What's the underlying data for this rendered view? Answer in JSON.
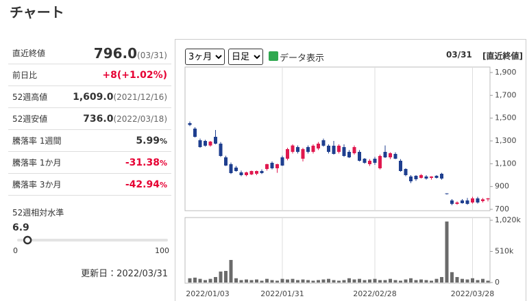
{
  "header": {
    "title": "チャート"
  },
  "summary": {
    "rows": [
      {
        "label": "直近終値",
        "value": "796.0",
        "note": "(03/31)"
      },
      {
        "label": "前日比",
        "value": "+8(+1.02%)",
        "color": "#e60033"
      },
      {
        "label": "52週高値",
        "value": "1,609.0",
        "note": "(2021/12/16)"
      },
      {
        "label": "52週安値",
        "value": "736.0",
        "note": "(2022/03/18)"
      },
      {
        "label": "騰落率 1週間",
        "value": "5.99",
        "unit": "%"
      },
      {
        "label": "騰落率 1か月",
        "value": "-31.38",
        "unit": "%",
        "color": "#e60033"
      },
      {
        "label": "騰落率 3か月",
        "value": "-42.94",
        "unit": "%",
        "color": "#e60033"
      }
    ],
    "level": {
      "label": "52週相対水準",
      "value": 6.9,
      "min": 0,
      "max": 100
    },
    "updated": "更新日：2022/03/31"
  },
  "controls": {
    "period": "3ヶ月",
    "interval": "日足",
    "show_data": "データ表示",
    "date": "03/31",
    "basis": "[直近終値]"
  },
  "chart_data": {
    "type": "candlestick",
    "categories": [
      "2022/01/03",
      null,
      null,
      null,
      null,
      null,
      null,
      null,
      null,
      null,
      null,
      null,
      null,
      null,
      null,
      null,
      null,
      null,
      "2022/01/31",
      null,
      null,
      null,
      null,
      null,
      null,
      null,
      null,
      null,
      null,
      null,
      null,
      null,
      null,
      null,
      null,
      null,
      "2022/02/28",
      null,
      null,
      null,
      null,
      null,
      null,
      null,
      null,
      null,
      null,
      null,
      null,
      null,
      null,
      null,
      null,
      null,
      null,
      "2022/03/28",
      null,
      null,
      null
    ],
    "open": [
      1456,
      1408,
      1306,
      1300,
      1260,
      1336,
      1276,
      1156,
      1096,
      1066,
      1024,
      1000,
      1006,
      1012,
      1036,
      1054,
      1108,
      1060,
      1156,
      1144,
      1204,
      1246,
      1144,
      1246,
      1204,
      1234,
      1306,
      1258,
      1258,
      1204,
      1246,
      1204,
      1192,
      1204,
      1144,
      1096,
      1144,
      1060,
      1204,
      1156,
      1186,
      1126,
      1054,
      988,
      994,
      976,
      988,
      976,
      994,
      1012,
      840,
      778,
      748,
      778,
      778,
      760,
      796,
      772,
      788
    ],
    "high": [
      1470,
      1420,
      1320,
      1310,
      1300,
      1396,
      1290,
      1170,
      1110,
      1080,
      1040,
      1030,
      1040,
      1040,
      1050,
      1100,
      1120,
      1100,
      1170,
      1240,
      1270,
      1260,
      1240,
      1260,
      1270,
      1290,
      1320,
      1270,
      1300,
      1270,
      1270,
      1220,
      1260,
      1220,
      1150,
      1140,
      1160,
      1180,
      1260,
      1200,
      1200,
      1140,
      1060,
      1000,
      1000,
      1010,
      1000,
      990,
      1000,
      1020,
      840,
      790,
      770,
      790,
      800,
      810,
      810,
      800,
      800
    ],
    "low": [
      1430,
      1330,
      1240,
      1250,
      1250,
      1270,
      1160,
      1080,
      1010,
      1030,
      990,
      990,
      1000,
      1000,
      1010,
      1040,
      1050,
      1020,
      1080,
      1130,
      1190,
      1190,
      1120,
      1190,
      1190,
      1220,
      1250,
      1190,
      1180,
      1190,
      1160,
      1150,
      1180,
      1120,
      1100,
      1080,
      1090,
      1050,
      1150,
      1140,
      1140,
      1030,
      990,
      930,
      950,
      970,
      960,
      960,
      970,
      960,
      830,
      736,
      740,
      750,
      740,
      750,
      750,
      760,
      770
    ],
    "close": [
      1440,
      1336,
      1246,
      1258,
      1294,
      1276,
      1168,
      1084,
      1018,
      1036,
      1000,
      1024,
      1036,
      1036,
      1018,
      1096,
      1060,
      1096,
      1084,
      1228,
      1260,
      1204,
      1228,
      1204,
      1258,
      1276,
      1258,
      1204,
      1186,
      1258,
      1168,
      1156,
      1246,
      1126,
      1108,
      1126,
      1108,
      1168,
      1156,
      1192,
      1144,
      1036,
      1000,
      946,
      964,
      1000,
      970,
      988,
      976,
      970,
      838,
      748,
      760,
      754,
      748,
      796,
      760,
      788,
      796
    ],
    "up_color": "#e0194f",
    "down_color": "#1f3f8f",
    "ylim": [
      700,
      1900
    ],
    "yticks": [
      700,
      900,
      {
        "value": 1100,
        "label": "1,100"
      },
      {
        "value": 1300,
        "label": "1,300"
      },
      {
        "value": 1500,
        "label": "1,500"
      },
      {
        "value": 1700,
        "label": "1,700"
      },
      {
        "value": 1900,
        "label": "1,900"
      }
    ],
    "volume": {
      "values": [
        70000,
        80000,
        60000,
        40000,
        60000,
        90000,
        180000,
        190000,
        370000,
        70000,
        40000,
        50000,
        40000,
        50000,
        30000,
        60000,
        40000,
        30000,
        60000,
        50000,
        60000,
        40000,
        50000,
        40000,
        30000,
        40000,
        50000,
        60000,
        40000,
        30000,
        40000,
        70000,
        50000,
        60000,
        40000,
        50000,
        60000,
        40000,
        40000,
        60000,
        40000,
        30000,
        50000,
        70000,
        40000,
        50000,
        40000,
        30000,
        60000,
        90000,
        1000000,
        170000,
        90000,
        60000,
        50000,
        70000,
        40000,
        60000,
        30000
      ],
      "color": "#6b6b6b",
      "ylim": [
        0,
        1020000
      ],
      "yticks": [
        0,
        {
          "value": 510000,
          "label": "510k"
        },
        {
          "value": 1020000,
          "label": "1,020k"
        }
      ]
    }
  }
}
